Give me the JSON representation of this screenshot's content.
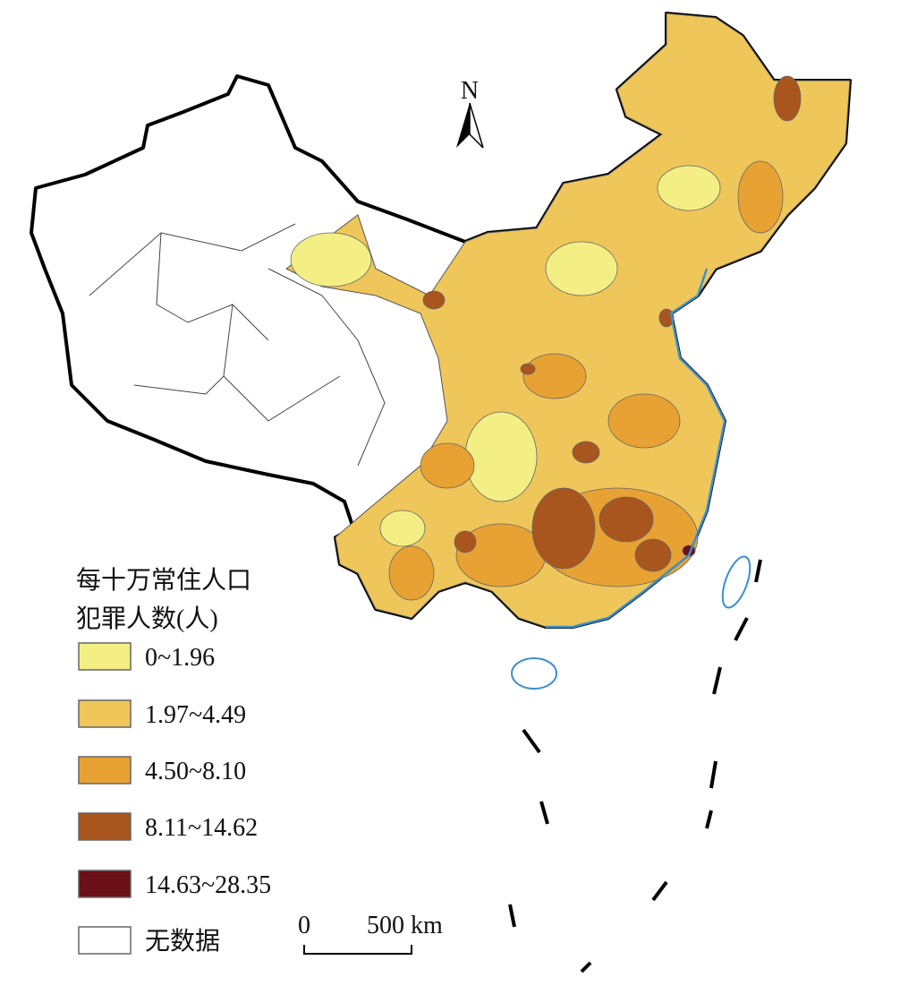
{
  "map": {
    "north_label": "N",
    "legend": {
      "title": [
        "每十万常住人口",
        "犯罪人数(人)"
      ],
      "items": [
        {
          "label": "0~1.96",
          "color": "#f3ef85"
        },
        {
          "label": "1.97~4.49",
          "color": "#efc65a"
        },
        {
          "label": "4.50~8.10",
          "color": "#e8a233"
        },
        {
          "label": "8.11~14.62",
          "color": "#a9561e"
        },
        {
          "label": "14.63~28.35",
          "color": "#6b0f18"
        },
        {
          "label": "无数据",
          "color": "#ffffff"
        }
      ]
    },
    "scale_bar": {
      "labels": [
        "0",
        "500 km"
      ]
    }
  }
}
